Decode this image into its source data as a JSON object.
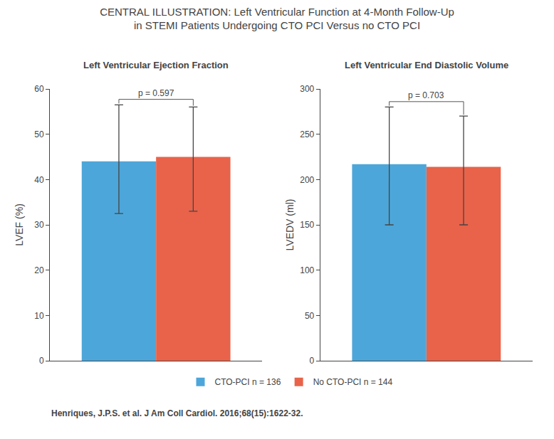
{
  "title": "CENTRAL ILLUSTRATION: Left Ventricular Function at 4-Month Follow-Up\nin STEMI Patients Undergoing CTO PCI Versus no CTO PCI",
  "annotations": [
    "Henriques, J.P.S. et al. J Am Coll Cardiol. 2016;68(15):1622-32."
  ],
  "chart_data": [
    {
      "type": "bar",
      "title": "Left Ventricular Ejection Fraction",
      "ylabel": "LVEF (%)",
      "categories": [
        null
      ],
      "series": [
        {
          "name": "CTO-PCI n = 136",
          "color": "#4da6d9",
          "values": [
            44.0
          ],
          "errors_low": [
            11.5
          ],
          "errors_high": [
            12.5
          ]
        },
        {
          "name": "No CTO-PCI n = 144",
          "color": "#e8634a",
          "values": [
            45.0
          ],
          "errors_low": [
            12.0
          ],
          "errors_high": [
            11.0
          ]
        }
      ],
      "ylim": [
        0,
        60
      ],
      "yticks": [
        0,
        10,
        20,
        30,
        40,
        50,
        60
      ],
      "annotations": [
        "p = 0.597"
      ],
      "grid": false,
      "legend": "bottom",
      "tick_labels": "y"
    },
    {
      "type": "bar",
      "title": "Left Ventricular End Diastolic Volume",
      "ylabel": "LVEDV (ml)",
      "categories": [
        null
      ],
      "series": [
        {
          "name": "CTO-PCI n = 136",
          "color": "#4da6d9",
          "values": [
            217.0
          ],
          "errors_low": [
            67.0
          ],
          "errors_high": [
            63.0
          ]
        },
        {
          "name": "No CTO-PCI n = 144",
          "color": "#e8634a",
          "values": [
            214.0
          ],
          "errors_low": [
            64.0
          ],
          "errors_high": [
            56.0
          ]
        }
      ],
      "ylim": [
        0,
        300
      ],
      "yticks": [
        0,
        50,
        100,
        150,
        200,
        250,
        300
      ],
      "annotations": [
        "p = 0.703"
      ],
      "grid": false,
      "legend": "bottom",
      "tick_labels": "y"
    }
  ]
}
